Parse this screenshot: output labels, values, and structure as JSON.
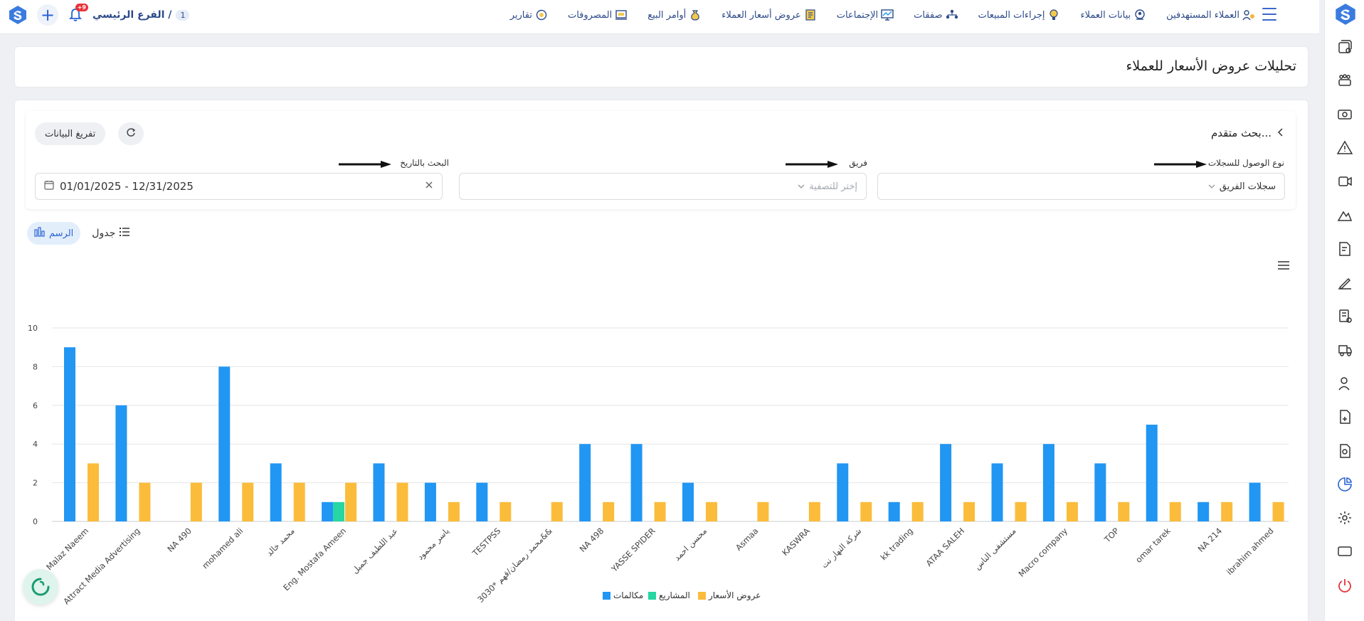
{
  "topbar": {
    "branch_number": "1",
    "branch_label": "الفرع الرئيسي /",
    "notifications_badge": "+9",
    "nav": [
      {
        "label": "العملاء المستهدفين",
        "icon": "target-customers-icon"
      },
      {
        "label": "بيانات العملاء",
        "icon": "customer-data-icon"
      },
      {
        "label": "إجراءات المبيعات",
        "icon": "sales-actions-icon"
      },
      {
        "label": "صفقات",
        "icon": "deals-icon"
      },
      {
        "label": "الإجتماعات",
        "icon": "meetings-icon"
      },
      {
        "label": "عروض أسعار العملاء",
        "icon": "quotes-icon"
      },
      {
        "label": "أوامر البيع",
        "icon": "sales-orders-icon"
      },
      {
        "label": "المصروفات",
        "icon": "expenses-icon"
      },
      {
        "label": "تقارير",
        "icon": "reports-icon"
      }
    ]
  },
  "page": {
    "title": "تحليلات عروض الأسعار للعملاء"
  },
  "filters": {
    "advanced_search": "بحث متقدم...",
    "clear_button": "تفريغ البيانات",
    "access_type_label": "نوع الوصول للسجلات",
    "access_type_value": "سجلات الفريق",
    "team_label": "فريق",
    "team_placeholder": "إختر للتصفية",
    "date_label": "البحث بالتاريخ",
    "date_value": "01/01/2025 - 12/31/2025"
  },
  "view": {
    "chart_label": "الرسم",
    "table_label": "جدول"
  },
  "colors": {
    "calls": "#2196f3",
    "projects": "#26d6a3",
    "quotes": "#fbbc3b",
    "accent": "#2a63d6"
  },
  "chart_data": {
    "type": "bar",
    "categories": [
      "Malaz Naeem",
      "Attract Media Advertising",
      "NA 490",
      "mohamed ali",
      "محمد خالد",
      "Eng. Mostafa Ameen",
      "عبد اللطيف جميل",
      "ياسر محمود",
      "TESTPSS",
      "3030* محمد رمضان/قهم&&",
      "NA 498",
      "YASSE SPIDER",
      "محسن احمد",
      "Asmaa",
      "KASWRA",
      "شركة النهار نت",
      "kk trading",
      "ATAA SALEH",
      "مستشفى الناس",
      "Macro company",
      "TOP",
      "omar tarek",
      "NA 214",
      "ibrahim ahmed"
    ],
    "series": [
      {
        "name": "مكالمات",
        "values": [
          9,
          6,
          0,
          8,
          3,
          1,
          3,
          2,
          2,
          0,
          4,
          4,
          2,
          0,
          0,
          3,
          1,
          4,
          3,
          4,
          3,
          5,
          1,
          2
        ]
      },
      {
        "name": "المشاريع",
        "values": [
          0,
          0,
          0,
          0,
          0,
          1,
          0,
          0,
          0,
          0,
          0,
          0,
          0,
          0,
          0,
          0,
          0,
          0,
          0,
          0,
          0,
          0,
          0,
          0
        ]
      },
      {
        "name": "عروض الأسعار",
        "values": [
          3,
          2,
          2,
          2,
          2,
          2,
          2,
          1,
          1,
          1,
          1,
          1,
          1,
          1,
          1,
          1,
          1,
          1,
          1,
          1,
          1,
          1,
          1,
          1
        ]
      }
    ],
    "yticks": [
      "0",
      "2",
      "4",
      "6",
      "8",
      "10"
    ],
    "ylim": [
      0,
      10
    ],
    "grid": true,
    "legend_position": "bottom-center"
  }
}
